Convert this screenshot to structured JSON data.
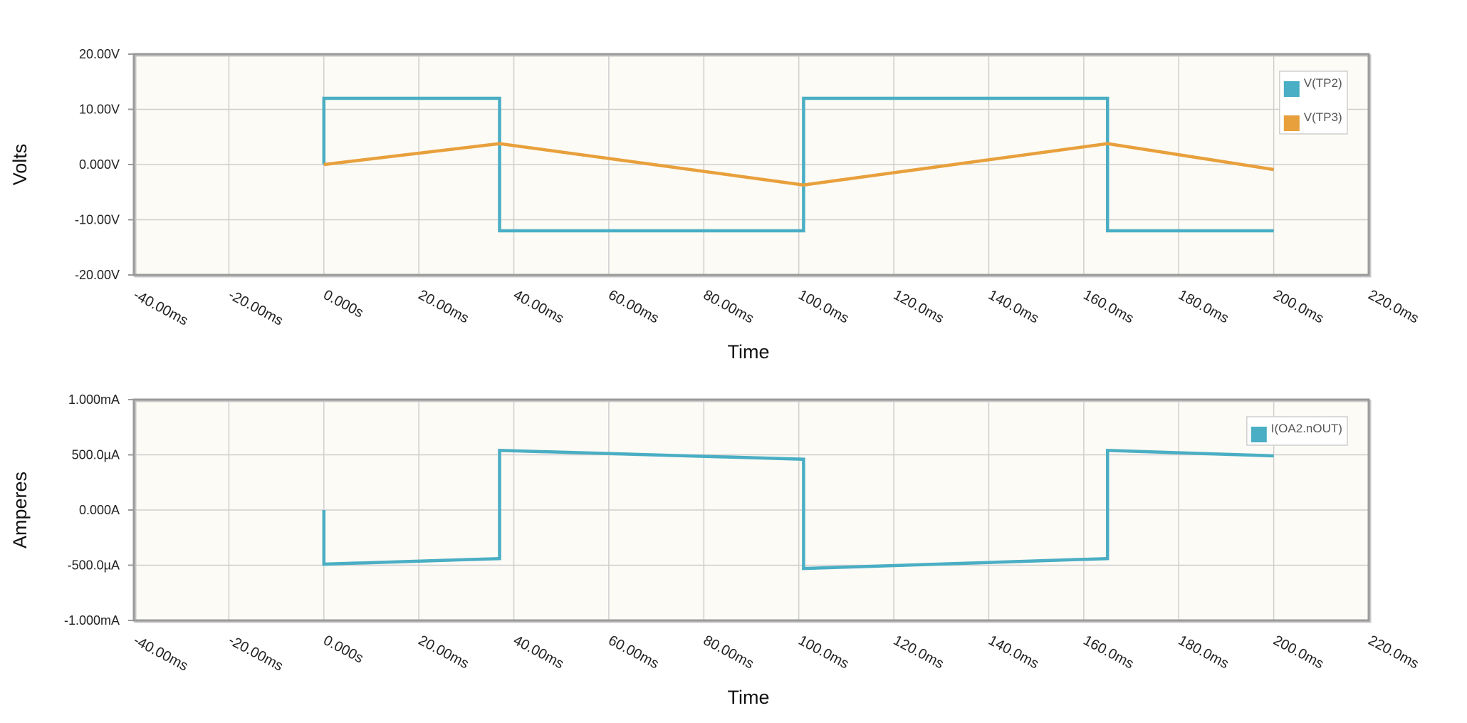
{
  "colors": {
    "plot_background": "#fdfbf5",
    "grid": "#cfcfcf",
    "frame": "#9a9a9a",
    "teal": "#4aaec4",
    "orange": "#e8a03c"
  },
  "chart_data": [
    {
      "type": "line",
      "ylabel": "Volts",
      "xlabel": "Time",
      "xlim": [
        -40,
        220
      ],
      "ylim": [
        -20,
        20
      ],
      "x_unit": "ms",
      "x_ticks": [
        -40,
        -20,
        0,
        20,
        40,
        60,
        80,
        100,
        120,
        140,
        160,
        180,
        200,
        220
      ],
      "x_tick_labels": [
        "-40.00ms",
        "-20.00ms",
        "0.000s",
        "20.00ms",
        "40.00ms",
        "60.00ms",
        "80.00ms",
        "100.0ms",
        "120.0ms",
        "140.0ms",
        "160.0ms",
        "180.0ms",
        "200.0ms",
        "220.0ms"
      ],
      "y_ticks": [
        20,
        10,
        0,
        -10,
        -20
      ],
      "y_tick_labels": [
        "20.00V",
        "10.00V",
        "0.000V",
        "-10.00V",
        "-20.00V"
      ],
      "grid": true,
      "legend_position": "top-right",
      "series": [
        {
          "name": "V(TP2)",
          "color": "#4aaec4",
          "x": [
            0,
            0,
            37,
            37,
            101,
            101,
            165,
            165,
            200
          ],
          "y": [
            0,
            12,
            12,
            -12,
            -12,
            12,
            12,
            -12,
            -12
          ]
        },
        {
          "name": "V(TP3)",
          "color": "#e8a03c",
          "x": [
            0,
            37,
            101,
            165,
            200
          ],
          "y": [
            0,
            3.8,
            -3.7,
            3.8,
            -0.9
          ]
        }
      ]
    },
    {
      "type": "line",
      "ylabel": "Amperes",
      "xlabel": "Time",
      "xlim": [
        -40,
        220
      ],
      "ylim": [
        -1.0,
        1.0
      ],
      "x_unit": "ms",
      "y_unit": "mA",
      "x_ticks": [
        -40,
        -20,
        0,
        20,
        40,
        60,
        80,
        100,
        120,
        140,
        160,
        180,
        200,
        220
      ],
      "x_tick_labels": [
        "-40.00ms",
        "-20.00ms",
        "0.000s",
        "20.00ms",
        "40.00ms",
        "60.00ms",
        "80.00ms",
        "100.0ms",
        "120.0ms",
        "140.0ms",
        "160.0ms",
        "180.0ms",
        "200.0ms",
        "220.0ms"
      ],
      "y_ticks": [
        1.0,
        0.5,
        0,
        -0.5,
        -1.0
      ],
      "y_tick_labels": [
        "1.000mA",
        "500.0µA",
        "0.000A",
        "-500.0µA",
        "-1.000mA"
      ],
      "grid": true,
      "legend_position": "top-right",
      "series": [
        {
          "name": "I(OA2.nOUT)",
          "color": "#4aaec4",
          "x": [
            0,
            0,
            37,
            37,
            101,
            101,
            165,
            165,
            200
          ],
          "y": [
            0.0,
            -0.49,
            -0.44,
            0.54,
            0.46,
            -0.53,
            -0.44,
            0.54,
            0.49
          ]
        }
      ]
    }
  ]
}
